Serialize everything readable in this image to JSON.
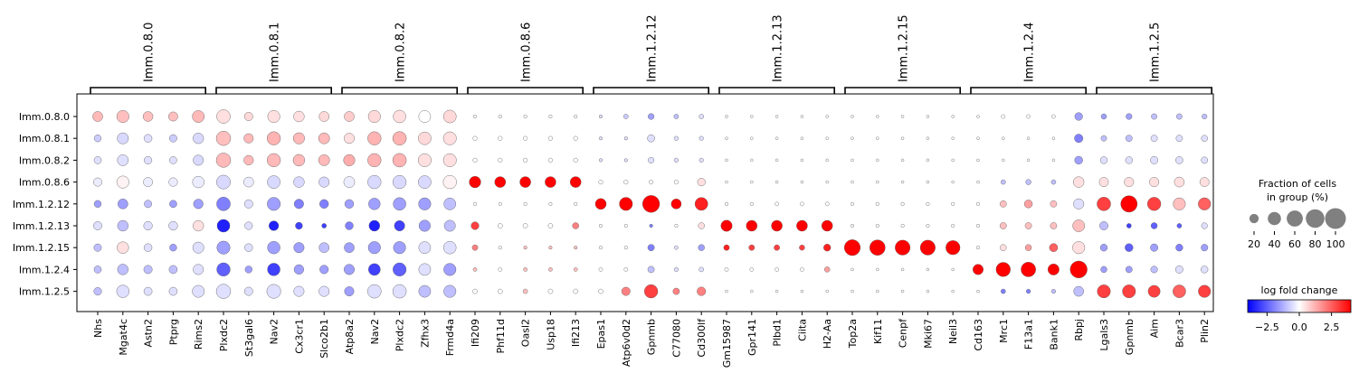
{
  "chart_data": {
    "type": "dotplot",
    "rows": [
      "Imm.0.8.0",
      "Imm.0.8.1",
      "Imm.0.8.2",
      "Imm.0.8.6",
      "Imm.1.2.12",
      "Imm.1.2.13",
      "Imm.1.2.15",
      "Imm.1.2.4",
      "Imm.1.2.5"
    ],
    "groups": [
      {
        "label": "Imm.0.8.0",
        "genes": [
          "Nhs",
          "Mgat4c",
          "Astn2",
          "Ptprg",
          "Rims2"
        ]
      },
      {
        "label": "Imm.0.8.1",
        "genes": [
          "Plxdc2",
          "St3gal6",
          "Nav2",
          "Cx3cr1",
          "Slco2b1"
        ]
      },
      {
        "label": "Imm.0.8.2",
        "genes": [
          "Atp8a2",
          "Nav2",
          "Plxdc2",
          "Zfhx3",
          "Frmd4a"
        ]
      },
      {
        "label": "Imm.0.8.6",
        "genes": [
          "Ifi209",
          "Phf11d",
          "Oasl2",
          "Usp18",
          "Ifi213"
        ]
      },
      {
        "label": "Imm.1.2.12",
        "genes": [
          "Epas1",
          "Atp6v0d2",
          "Gpnmb",
          "C77080",
          "Cd300lf"
        ]
      },
      {
        "label": "Imm.1.2.13",
        "genes": [
          "Gm15987",
          "Gpr141",
          "Plbd1",
          "Ciita",
          "H2-Aa"
        ]
      },
      {
        "label": "Imm.1.2.15",
        "genes": [
          "Top2a",
          "Kif11",
          "Cenpf",
          "Mki67",
          "Neil3"
        ]
      },
      {
        "label": "Imm.1.2.4",
        "genes": [
          "Cd163",
          "Mrc1",
          "F13a1",
          "Bank1",
          "Rbpj"
        ]
      },
      {
        "label": "Imm.1.2.5",
        "genes": [
          "Lgals3",
          "Gpnmb",
          "Aim",
          "Bcar3",
          "Plin2"
        ]
      }
    ],
    "fraction": [
      [
        28,
        42,
        27,
        24,
        40,
        52,
        20,
        42,
        32,
        28,
        28,
        42,
        45,
        40,
        46,
        3,
        3,
        3,
        3,
        3,
        3,
        6,
        10,
        6,
        6,
        2,
        2,
        2,
        2,
        2,
        2,
        2,
        2,
        2,
        2,
        2,
        4,
        4,
        4,
        17,
        8,
        10,
        9,
        9,
        7
      ],
      [
        14,
        35,
        18,
        16,
        32,
        58,
        25,
        50,
        36,
        34,
        30,
        50,
        52,
        46,
        48,
        5,
        5,
        5,
        5,
        5,
        3,
        3,
        15,
        5,
        5,
        2,
        2,
        2,
        2,
        2,
        2,
        2,
        2,
        2,
        2,
        2,
        2,
        2,
        2,
        20,
        9,
        12,
        12,
        12,
        11
      ],
      [
        15,
        34,
        17,
        15,
        30,
        58,
        26,
        50,
        38,
        34,
        36,
        50,
        52,
        48,
        48,
        5,
        5,
        5,
        5,
        5,
        3,
        3,
        10,
        5,
        5,
        2,
        2,
        2,
        2,
        2,
        2,
        2,
        2,
        2,
        2,
        2,
        2,
        2,
        2,
        18,
        14,
        14,
        16,
        15,
        12
      ],
      [
        20,
        42,
        24,
        21,
        38,
        54,
        28,
        46,
        32,
        30,
        34,
        50,
        50,
        46,
        50,
        37,
        33,
        33,
        33,
        33,
        5,
        5,
        5,
        5,
        17,
        2,
        2,
        2,
        2,
        2,
        2,
        2,
        2,
        2,
        2,
        2,
        6,
        8,
        6,
        32,
        24,
        25,
        25,
        28,
        24
      ],
      [
        14,
        28,
        16,
        15,
        26,
        52,
        20,
        48,
        25,
        22,
        22,
        38,
        45,
        42,
        40,
        3,
        3,
        3,
        3,
        3,
        33,
        48,
        80,
        28,
        46,
        3,
        3,
        4,
        4,
        4,
        3,
        3,
        3,
        3,
        3,
        3,
        12,
        18,
        12,
        30,
        52,
        75,
        50,
        42,
        43
      ],
      [
        20,
        32,
        21,
        22,
        32,
        45,
        17,
        26,
        14,
        6,
        18,
        32,
        30,
        36,
        35,
        17,
        6,
        6,
        6,
        11,
        3,
        3,
        3,
        3,
        11,
        35,
        33,
        33,
        33,
        33,
        3,
        3,
        3,
        3,
        3,
        3,
        12,
        12,
        12,
        40,
        20,
        6,
        11,
        6,
        10
      ],
      [
        16,
        38,
        18,
        14,
        35,
        48,
        18,
        44,
        30,
        28,
        28,
        42,
        42,
        40,
        45,
        9,
        3,
        3,
        3,
        3,
        3,
        3,
        12,
        4,
        11,
        9,
        9,
        9,
        8,
        14,
        70,
        66,
        62,
        62,
        56,
        3,
        11,
        11,
        19,
        42,
        14,
        18,
        16,
        14,
        13
      ],
      [
        15,
        32,
        20,
        19,
        30,
        50,
        14,
        44,
        26,
        21,
        30,
        39,
        49,
        40,
        42,
        4,
        4,
        4,
        4,
        4,
        4,
        4,
        12,
        5,
        6,
        4,
        4,
        4,
        4,
        8,
        2,
        2,
        2,
        2,
        2,
        30,
        57,
        60,
        35,
        80,
        11,
        12,
        13,
        16,
        14
      ],
      [
        17,
        44,
        19,
        19,
        41,
        58,
        20,
        55,
        30,
        30,
        25,
        52,
        52,
        40,
        42,
        6,
        6,
        6,
        6,
        6,
        6,
        20,
        50,
        12,
        21,
        2,
        2,
        2,
        2,
        2,
        2,
        2,
        2,
        2,
        2,
        2,
        6,
        5,
        5,
        28,
        48,
        48,
        40,
        46,
        42
      ]
    ],
    "logfoldchange": [
      [
        1.1,
        1.0,
        1.0,
        1.0,
        1.1,
        0.5,
        0.6,
        0.5,
        0.5,
        0.6,
        0.8,
        0.6,
        0.5,
        0.0,
        0.6,
        0,
        0,
        0,
        0,
        0,
        -0.5,
        -0.8,
        -1.5,
        -1.0,
        -0.5,
        0,
        0,
        0,
        0,
        0,
        0,
        0,
        0,
        0,
        0,
        0,
        0,
        0,
        0,
        -1.5,
        -1.5,
        -1.5,
        -1.0,
        -1.0,
        -1.0
      ],
      [
        -0.8,
        -0.6,
        -0.5,
        -0.8,
        -0.6,
        1.0,
        1.1,
        1.2,
        1.1,
        1.1,
        0.5,
        1.2,
        1.2,
        0.6,
        0.5,
        0,
        0,
        0,
        0,
        0,
        -0.5,
        -0.5,
        -0.5,
        -0.5,
        -0.5,
        0,
        0,
        0,
        0,
        0,
        0,
        0,
        0,
        0,
        0,
        0,
        0,
        0,
        0,
        -2.0,
        -1.0,
        -1.0,
        -0.5,
        -0.5,
        -0.5
      ],
      [
        -0.5,
        -0.5,
        -0.5,
        -0.5,
        -0.6,
        1.1,
        1.1,
        1.1,
        1.1,
        1.1,
        1.3,
        1.2,
        1.2,
        0.5,
        0.5,
        0,
        0,
        0,
        0,
        0,
        -0.5,
        -0.5,
        -0.5,
        -0.5,
        -0.5,
        0,
        0,
        0,
        0,
        0,
        0,
        0,
        0,
        0,
        0,
        0,
        0,
        0,
        0,
        -1.5,
        -0.5,
        -0.5,
        -0.5,
        -0.5,
        -0.5
      ],
      [
        -0.3,
        0.2,
        -0.3,
        -0.3,
        -0.3,
        -0.6,
        -0.3,
        -0.6,
        -0.6,
        -0.6,
        -0.3,
        -0.6,
        -0.6,
        -0.6,
        0.2,
        4,
        4,
        4,
        4,
        4,
        0,
        0,
        0,
        0,
        0.5,
        0,
        0,
        0,
        0,
        0,
        0,
        0,
        0,
        0,
        0,
        0,
        -1.0,
        -1.0,
        -1.0,
        0.5,
        0.5,
        0.5,
        0.5,
        0.5,
        0.5
      ],
      [
        -1.5,
        -1.5,
        -1.0,
        -1.5,
        -1.5,
        -2.0,
        -0.5,
        -1.5,
        -2.0,
        -2.0,
        -1.5,
        -1.5,
        -1.5,
        -1.5,
        -1.0,
        0,
        0,
        0,
        0,
        0,
        4,
        4,
        4,
        4,
        3.5,
        0,
        0,
        0,
        0,
        0,
        0,
        0,
        0,
        0,
        0,
        0,
        1.0,
        1.5,
        1.0,
        -0.5,
        3,
        4,
        3,
        1.0,
        2.5
      ],
      [
        -0.5,
        -1.0,
        -0.5,
        -0.5,
        0.5,
        -3.5,
        -0.5,
        -3.5,
        -3.0,
        -3.0,
        -2.0,
        -3.5,
        -3.0,
        -1.5,
        -1.0,
        3,
        0,
        0,
        0,
        2,
        0,
        0,
        -2.0,
        0,
        0.5,
        4,
        4,
        4,
        4,
        4,
        0,
        0,
        0,
        0,
        0,
        0,
        1.0,
        1.0,
        1.0,
        1.0,
        -1.0,
        -3.0,
        -2.5,
        -2.5,
        -0.5
      ],
      [
        -1.0,
        0.5,
        -0.5,
        -1.5,
        -0.5,
        -1.5,
        -0.5,
        -1.5,
        -1.5,
        -1.0,
        -1.5,
        -1.5,
        -1.5,
        -0.5,
        -0.5,
        2,
        0,
        1,
        1,
        1,
        0,
        0,
        -2.0,
        -0.5,
        -1.5,
        3.5,
        3,
        3,
        3,
        3.5,
        4,
        4,
        4,
        4,
        4,
        0,
        0.5,
        1.5,
        2.5,
        0.5,
        -1.5,
        -2.5,
        -1.5,
        -2.0,
        -1.5
      ],
      [
        -1.0,
        -1.0,
        -1.0,
        -1.0,
        -0.5,
        -2.5,
        -1.5,
        -3.0,
        -1.5,
        -1.5,
        -1.5,
        -3.0,
        -2.5,
        -0.5,
        -1.5,
        1,
        0,
        1,
        1,
        1,
        0,
        0,
        -1.0,
        -0.5,
        -0.5,
        0,
        0,
        0,
        0,
        1.5,
        0,
        0,
        0,
        0,
        0,
        4,
        4,
        4,
        4,
        4,
        -1.5,
        -1.5,
        -1.0,
        -0.5,
        -0.5
      ],
      [
        -1.0,
        -0.5,
        -0.5,
        -0.5,
        -0.5,
        -0.5,
        -0.5,
        -0.5,
        -0.5,
        -0.5,
        -1.5,
        -0.5,
        -0.5,
        -1.0,
        -1.0,
        0,
        0,
        1,
        0,
        0,
        0,
        2,
        3,
        2,
        2,
        0,
        0,
        0,
        0,
        0,
        0,
        0,
        0,
        0,
        0,
        0,
        -2,
        -2,
        -1,
        -1.0,
        3,
        3,
        3,
        2.5,
        3
      ]
    ],
    "size_legend": {
      "title_line1": "Fraction of cells",
      "title_line2": "in group (%)",
      "values": [
        20,
        40,
        60,
        80,
        100
      ]
    },
    "color_legend": {
      "title": "log fold change",
      "colormap": "bwr",
      "range": [
        -4,
        4
      ],
      "ticks": [
        -2.5,
        0.0,
        2.5
      ]
    },
    "colors": {
      "low": "#0000ff",
      "mid": "#ffffff",
      "high": "#ff0000",
      "legend_dot": "#808080"
    }
  }
}
